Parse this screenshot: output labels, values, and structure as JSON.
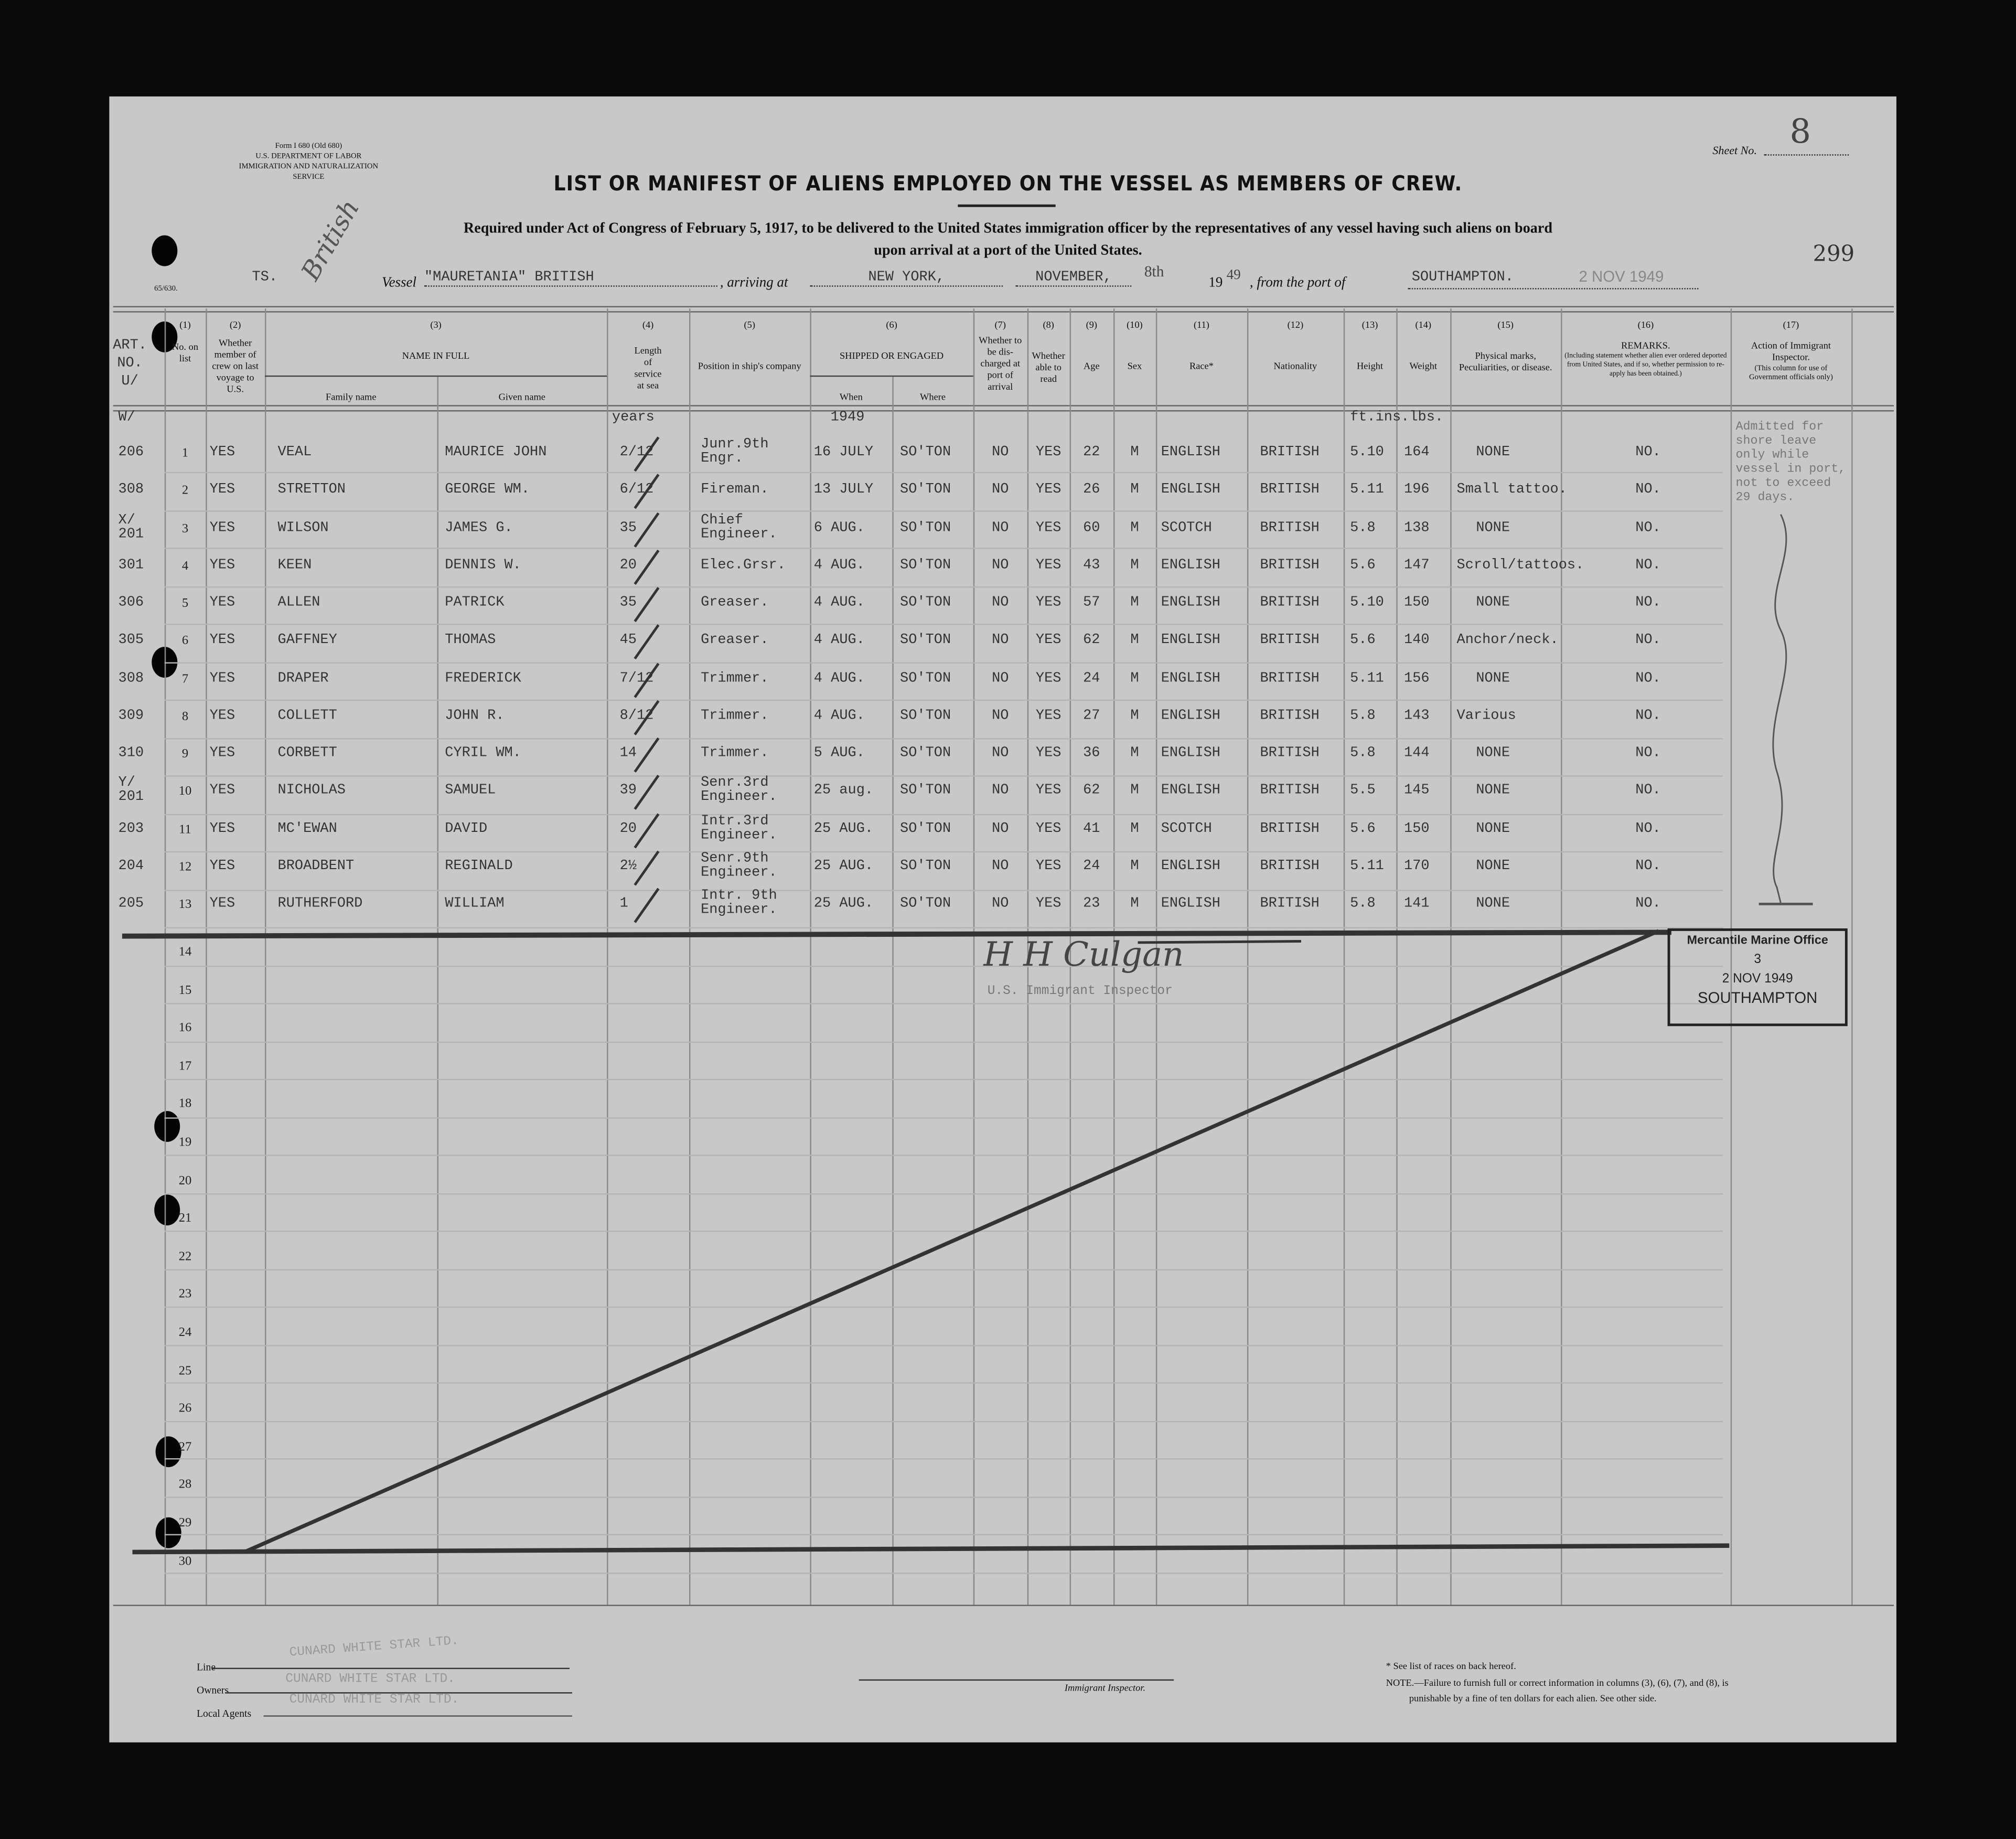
{
  "form": {
    "form_number": "Form I 680 (Old 680)",
    "department": "U.S. DEPARTMENT OF LABOR",
    "service": "IMMIGRATION AND NATURALIZATION SERVICE",
    "code": "65/630.",
    "sheet_label": "Sheet No.",
    "sheet_no": "8",
    "page_number": "299"
  },
  "title": "LIST OR MANIFEST OF ALIENS EMPLOYED ON THE VESSEL AS MEMBERS OF CREW.",
  "subtitle_line1": "Required under Act of Congress of February 5, 1917, to be delivered to the United States immigration officer by the representatives of any vessel having such aliens on board",
  "subtitle_line2": "upon arrival at a port of the United States.",
  "voyage": {
    "ts": "TS.",
    "handwritten_note": "British",
    "vessel_label": "Vessel",
    "vessel": "\"MAURETANIA\"  BRITISH",
    "arriving_label": ", arriving at",
    "arriving_at": "NEW YORK,",
    "month": "NOVEMBER,",
    "day": "8th",
    "year_prefix": "19",
    "year_suffix": "49",
    "from_label": ", from the port of",
    "from_port": "SOUTHAMPTON.",
    "date_stamp": "2 NOV 1949"
  },
  "headers": {
    "art": "ART. NO. U/",
    "c1_num": "(1)",
    "c1": "No. on list",
    "c2_num": "(2)",
    "c2": "Whether member of crew on last voyage to U.S.",
    "c3_num": "(3)",
    "c3": "NAME IN FULL",
    "c3a": "Family name",
    "c3b": "Given name",
    "c4_num": "(4)",
    "c4": "Length of service at sea",
    "c5_num": "(5)",
    "c5": "Position in ship's company",
    "c6_num": "(6)",
    "c6": "SHIPPED OR ENGAGED",
    "c6a": "When",
    "c6b": "Where",
    "c7_num": "(7)",
    "c7": "Whether to be dis-charged at port of arrival",
    "c8_num": "(8)",
    "c8": "Whether able to read",
    "c9_num": "(9)",
    "c9": "Age",
    "c10_num": "(10)",
    "c10": "Sex",
    "c11_num": "(11)",
    "c11": "Race*",
    "c12_num": "(12)",
    "c12": "Nationality",
    "c13_num": "(13)",
    "c13": "Height",
    "c14_num": "(14)",
    "c14": "Weight",
    "c15_num": "(15)",
    "c15": "Physical marks, Peculiarities, or disease.",
    "c16_num": "(16)",
    "c16": "REMARKS.",
    "c16_note": "(Including statement whether alien ever ordered deported from United States, and if so, whether permission to re-apply has been obtained.)",
    "c17_num": "(17)",
    "c17": "Action of Immigrant Inspector.",
    "c17_note": "(This column for use of Government officials only)"
  },
  "units_row": {
    "art": "W/",
    "length": "years",
    "when": "1949",
    "height_weight": "ft.ins.lbs."
  },
  "action_note": "Admitted for shore leave only while vessel in port, not to exceed 29 days.",
  "rows": [
    {
      "art": "206",
      "no": "1",
      "last_voyage": "YES",
      "family": "VEAL",
      "given": "MAURICE JOHN",
      "length": "2/12",
      "position": "Junr.9th\nEngr.",
      "when": "16 JULY",
      "where": "SO'TON",
      "discharged": "NO",
      "read": "YES",
      "age": "22",
      "sex": "M",
      "race": "ENGLISH",
      "nationality": "BRITISH",
      "height": "5.10",
      "weight": "164",
      "marks": "NONE",
      "remarks": "NO."
    },
    {
      "art": "308",
      "no": "2",
      "last_voyage": "YES",
      "family": "STRETTON",
      "given": "GEORGE WM.",
      "length": "6/12",
      "position": "Fireman.",
      "when": "13 JULY",
      "where": "SO'TON",
      "discharged": "NO",
      "read": "YES",
      "age": "26",
      "sex": "M",
      "race": "ENGLISH",
      "nationality": "BRITISH",
      "height": "5.11",
      "weight": "196",
      "marks": "Small tattoo.",
      "remarks": "NO."
    },
    {
      "art": "X/\n201",
      "no": "3",
      "last_voyage": "YES",
      "family": "WILSON",
      "given": "JAMES  G.",
      "length": "35",
      "position": "Chief\nEngineer.",
      "when": "6 AUG.",
      "where": "SO'TON",
      "discharged": "NO",
      "read": "YES",
      "age": "60",
      "sex": "M",
      "race": "SCOTCH",
      "nationality": "BRITISH",
      "height": "5.8",
      "weight": "138",
      "marks": "NONE",
      "remarks": "NO."
    },
    {
      "art": "301",
      "no": "4",
      "last_voyage": "YES",
      "family": "KEEN",
      "given": "DENNIS  W.",
      "length": "20",
      "position": "Elec.Grsr.",
      "when": "4 AUG.",
      "where": "SO'TON",
      "discharged": "NO",
      "read": "YES",
      "age": "43",
      "sex": "M",
      "race": "ENGLISH",
      "nationality": "BRITISH",
      "height": "5.6",
      "weight": "147",
      "marks": "Scroll/tattoos.",
      "remarks": "NO."
    },
    {
      "art": "306",
      "no": "5",
      "last_voyage": "YES",
      "family": "ALLEN",
      "given": "PATRICK",
      "length": "35",
      "position": "Greaser.",
      "when": "4 AUG.",
      "where": "SO'TON",
      "discharged": "NO",
      "read": "YES",
      "age": "57",
      "sex": "M",
      "race": "ENGLISH",
      "nationality": "BRITISH",
      "height": "5.10",
      "weight": "150",
      "marks": "NONE",
      "remarks": "NO."
    },
    {
      "art": "305",
      "no": "6",
      "last_voyage": "YES",
      "family": "GAFFNEY",
      "given": "THOMAS",
      "length": "45",
      "position": "Greaser.",
      "when": "4 AUG.",
      "where": "SO'TON",
      "discharged": "NO",
      "read": "YES",
      "age": "62",
      "sex": "M",
      "race": "ENGLISH",
      "nationality": "BRITISH",
      "height": "5.6",
      "weight": "140",
      "marks": "Anchor/neck.",
      "remarks": "NO."
    },
    {
      "art": "308",
      "no": "7",
      "last_voyage": "YES",
      "family": "DRAPER",
      "given": "FREDERICK",
      "length": "7/12",
      "position": "Trimmer.",
      "when": "4 AUG.",
      "where": "SO'TON",
      "discharged": "NO",
      "read": "YES",
      "age": "24",
      "sex": "M",
      "race": "ENGLISH",
      "nationality": "BRITISH",
      "height": "5.11",
      "weight": "156",
      "marks": "NONE",
      "remarks": "NO."
    },
    {
      "art": "309",
      "no": "8",
      "last_voyage": "YES",
      "family": "COLLETT",
      "given": "JOHN R.",
      "length": "8/12",
      "position": "Trimmer.",
      "when": "4 AUG.",
      "where": "SO'TON",
      "discharged": "NO",
      "read": "YES",
      "age": "27",
      "sex": "M",
      "race": "ENGLISH",
      "nationality": "BRITISH",
      "height": "5.8",
      "weight": "143",
      "marks": "Various",
      "remarks": "NO."
    },
    {
      "art": "310",
      "no": "9",
      "last_voyage": "YES",
      "family": "CORBETT",
      "given": "CYRIL WM.",
      "length": "14",
      "position": "Trimmer.",
      "when": "5 AUG.",
      "where": "SO'TON",
      "discharged": "NO",
      "read": "YES",
      "age": "36",
      "sex": "M",
      "race": "ENGLISH",
      "nationality": "BRITISH",
      "height": "5.8",
      "weight": "144",
      "marks": "NONE",
      "remarks": "NO."
    },
    {
      "art": "Y/\n201",
      "no": "10",
      "last_voyage": "YES",
      "family": "NICHOLAS",
      "given": "SAMUEL",
      "length": "39",
      "position": "Senr.3rd\nEngineer.",
      "when": "25 aug.",
      "where": "SO'TON",
      "discharged": "NO",
      "read": "YES",
      "age": "62",
      "sex": "M",
      "race": "ENGLISH",
      "nationality": "BRITISH",
      "height": "5.5",
      "weight": "145",
      "marks": "NONE",
      "remarks": "NO."
    },
    {
      "art": "203",
      "no": "11",
      "last_voyage": "YES",
      "family": "MC'EWAN",
      "given": "DAVID",
      "length": "20",
      "position": "Intr.3rd\nEngineer.",
      "when": "25 AUG.",
      "where": "SO'TON",
      "discharged": "NO",
      "read": "YES",
      "age": "41",
      "sex": "M",
      "race": "SCOTCH",
      "nationality": "BRITISH",
      "height": "5.6",
      "weight": "150",
      "marks": "NONE",
      "remarks": "NO."
    },
    {
      "art": "204",
      "no": "12",
      "last_voyage": "YES",
      "family": "BROADBENT",
      "given": "REGINALD",
      "length": "2½",
      "position": "Senr.9th\nEngineer.",
      "when": "25 AUG.",
      "where": "SO'TON",
      "discharged": "NO",
      "read": "YES",
      "age": "24",
      "sex": "M",
      "race": "ENGLISH",
      "nationality": "BRITISH",
      "height": "5.11",
      "weight": "170",
      "marks": "NONE",
      "remarks": "NO."
    },
    {
      "art": "205",
      "no": "13",
      "last_voyage": "YES",
      "family": "RUTHERFORD",
      "given": "WILLIAM",
      "length": "1",
      "position": "Intr. 9th\nEngineer.",
      "when": "25 AUG.",
      "where": "SO'TON",
      "discharged": "NO",
      "read": "YES",
      "age": "23",
      "sex": "M",
      "race": "ENGLISH",
      "nationality": "BRITISH",
      "height": "5.8",
      "weight": "141",
      "marks": "NONE",
      "remarks": "NO."
    }
  ],
  "blank_row_numbers": [
    "14",
    "15",
    "16",
    "17",
    "18",
    "19",
    "20",
    "21",
    "22",
    "23",
    "24",
    "25",
    "26",
    "27",
    "28",
    "29",
    "30"
  ],
  "inspector": {
    "signature": "H H Culgan",
    "label": "U.S. Immigrant Inspector"
  },
  "stamp": {
    "line1": "Mercantile Marine Office",
    "line2": "3",
    "line3": "2 NOV 1949",
    "line4": "SOUTHAMPTON"
  },
  "footer": {
    "line_label": "Line",
    "line_value": "CUNARD WHITE STAR LTD.",
    "owners_label": "Owners",
    "owners_value": "CUNARD WHITE STAR LTD.",
    "agents_label": "Local Agents",
    "agents_value": "CUNARD WHITE STAR LTD.",
    "inspector_label": "Immigrant Inspector.",
    "races_note": "* See list of races on back hereof.",
    "note_line1": "NOTE.—Failure to furnish full or correct information in columns (3), (6), (7), and (8), is",
    "note_line2": "punishable by a fine of ten dollars for each alien.  See other side."
  }
}
